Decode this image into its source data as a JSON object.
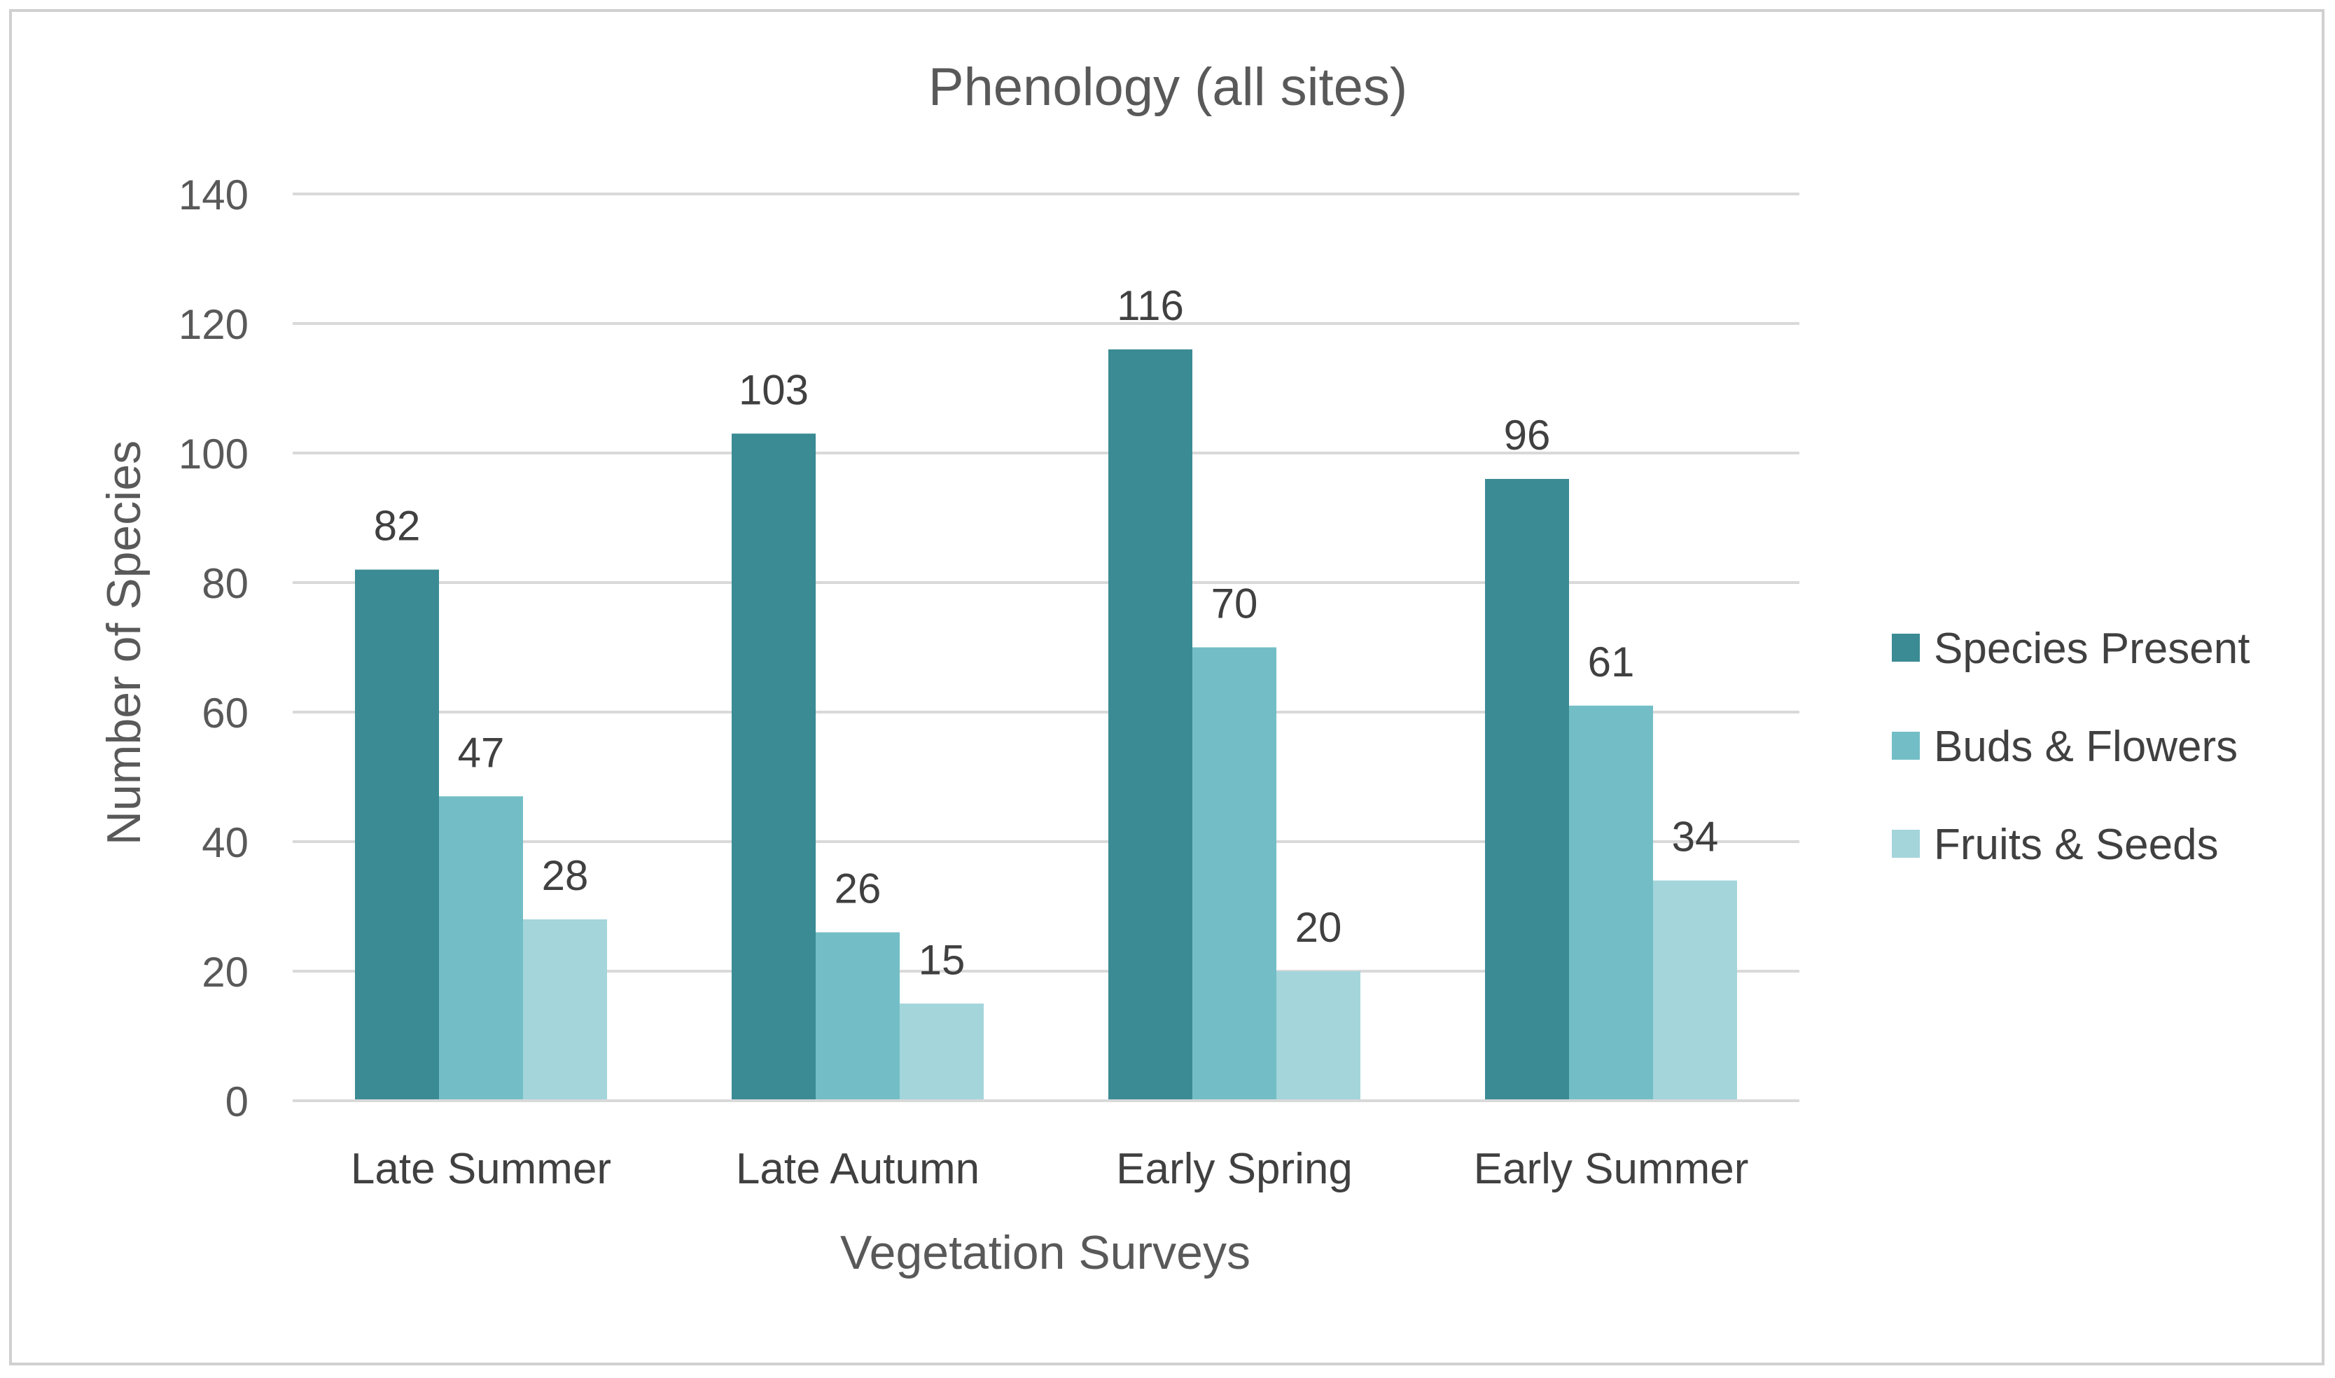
{
  "chart_data": {
    "type": "bar",
    "title": "Phenology (all sites)",
    "xlabel": "Vegetation Surveys",
    "ylabel": "Number of Species",
    "ylim": [
      0,
      140
    ],
    "yticks": [
      0,
      20,
      40,
      60,
      80,
      100,
      120,
      140
    ],
    "grid": true,
    "legend_position": "right",
    "categories": [
      "Late Summer",
      "Late Autumn",
      "Early Spring",
      "Early Summer"
    ],
    "series": [
      {
        "name": "Species Present",
        "values": [
          82,
          103,
          116,
          96
        ],
        "color": "#3a8b94"
      },
      {
        "name": "Buds & Flowers",
        "values": [
          47,
          26,
          70,
          61
        ],
        "color": "#73bec6"
      },
      {
        "name": "Fruits & Seeds",
        "values": [
          28,
          15,
          20,
          34
        ],
        "color": "#a3d5db"
      }
    ],
    "data_labels": true
  },
  "colors": {
    "grid": "#d9d9d9",
    "text": "#404040",
    "tick_text": "#595959",
    "border": "#d0d0d0"
  }
}
